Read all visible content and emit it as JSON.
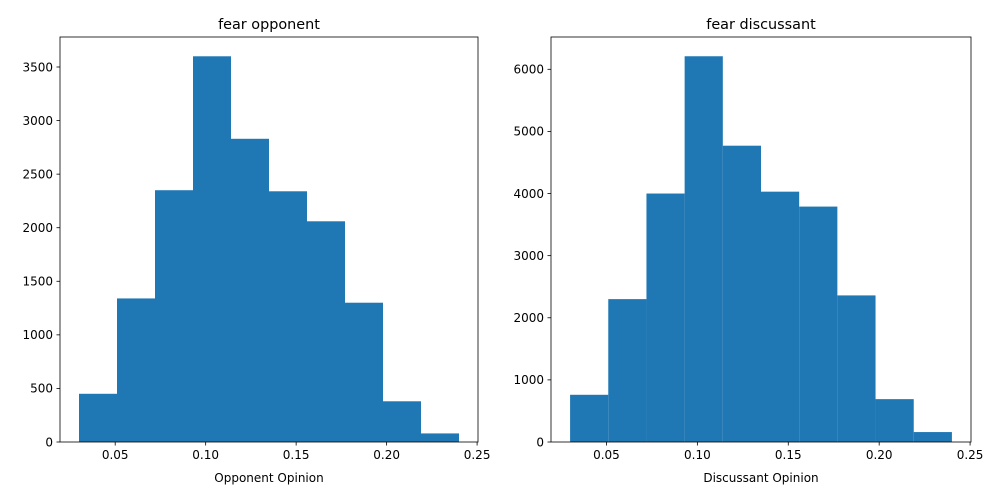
{
  "colors": {
    "bar": "#1f77b4",
    "axis": "#000000",
    "background": "#ffffff"
  },
  "chart_data": [
    {
      "type": "bar",
      "title": "fear opponent",
      "xlabel": "Opponent Opinion",
      "ylabel": "",
      "bin_edges": [
        0.03,
        0.051,
        0.072,
        0.093,
        0.114,
        0.135,
        0.156,
        0.177,
        0.198,
        0.219,
        0.24
      ],
      "values": [
        450,
        1340,
        2350,
        3600,
        2830,
        2340,
        2060,
        1300,
        380,
        80
      ],
      "xlim": [
        0.0195,
        0.2505
      ],
      "ylim": [
        0,
        3780
      ],
      "xticks": [
        0.05,
        0.1,
        0.15,
        0.2,
        0.25
      ],
      "xtick_labels": [
        "0.05",
        "0.10",
        "0.15",
        "0.20",
        "0.25"
      ],
      "yticks": [
        0,
        500,
        1000,
        1500,
        2000,
        2500,
        3000,
        3500
      ],
      "ytick_labels": [
        "0",
        "500",
        "1000",
        "1500",
        "2000",
        "2500",
        "3000",
        "3500"
      ],
      "grid": false,
      "legend": "none"
    },
    {
      "type": "bar",
      "title": "fear discussant",
      "xlabel": "Discussant Opinion",
      "ylabel": "",
      "bin_edges": [
        0.03,
        0.051,
        0.072,
        0.093,
        0.114,
        0.135,
        0.156,
        0.177,
        0.198,
        0.219,
        0.24
      ],
      "values": [
        760,
        2300,
        4000,
        6210,
        4770,
        4030,
        3790,
        2360,
        690,
        160
      ],
      "xlim": [
        0.0195,
        0.2505
      ],
      "ylim": [
        0,
        6520
      ],
      "xticks": [
        0.05,
        0.1,
        0.15,
        0.2,
        0.25
      ],
      "xtick_labels": [
        "0.05",
        "0.10",
        "0.15",
        "0.20",
        "0.25"
      ],
      "yticks": [
        0,
        1000,
        2000,
        3000,
        4000,
        5000,
        6000
      ],
      "ytick_labels": [
        "0",
        "1000",
        "2000",
        "3000",
        "4000",
        "5000",
        "6000"
      ],
      "grid": false,
      "legend": "none"
    }
  ]
}
